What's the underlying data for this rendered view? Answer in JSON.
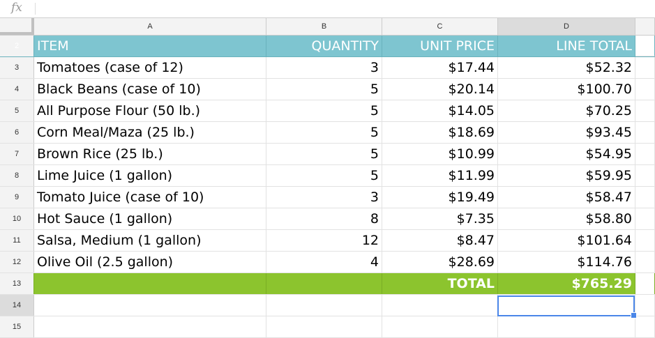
{
  "formula_bar": {
    "icon": "fx-icon",
    "label": "fx"
  },
  "columns": [
    "A",
    "B",
    "C",
    "D"
  ],
  "header_row": {
    "num": "2",
    "cells": [
      "ITEM",
      "QUANTITY",
      "UNIT PRICE",
      "LINE TOTAL"
    ]
  },
  "rows": [
    {
      "num": "3",
      "cells": [
        "Tomatoes (case of 12)",
        "3",
        "$17.44",
        "$52.32"
      ]
    },
    {
      "num": "4",
      "cells": [
        "Black Beans (case of 10)",
        "5",
        "$20.14",
        "$100.70"
      ]
    },
    {
      "num": "5",
      "cells": [
        "All Purpose Flour (50 lb.)",
        "5",
        "$14.05",
        "$70.25"
      ]
    },
    {
      "num": "6",
      "cells": [
        "Corn Meal/Maza (25 lb.)",
        "5",
        "$18.69",
        "$93.45"
      ]
    },
    {
      "num": "7",
      "cells": [
        "Brown Rice (25 lb.)",
        "5",
        "$10.99",
        "$54.95"
      ]
    },
    {
      "num": "8",
      "cells": [
        "Lime Juice (1 gallon)",
        "5",
        "$11.99",
        "$59.95"
      ]
    },
    {
      "num": "9",
      "cells": [
        "Tomato Juice (case of 10)",
        "3",
        "$19.49",
        "$58.47"
      ]
    },
    {
      "num": "10",
      "cells": [
        "Hot Sauce (1 gallon)",
        "8",
        "$7.35",
        "$58.80"
      ]
    },
    {
      "num": "11",
      "cells": [
        "Salsa, Medium (1 gallon)",
        "12",
        "$8.47",
        "$101.64"
      ]
    },
    {
      "num": "12",
      "cells": [
        "Olive Oil (2.5 gallon)",
        "4",
        "$28.69",
        "$114.76"
      ]
    }
  ],
  "total_row": {
    "num": "13",
    "label": "TOTAL",
    "value": "$765.29"
  },
  "empty_rows": [
    "14",
    "15"
  ],
  "colors": {
    "header_bg": "#7ec5d0",
    "total_bg": "#8cc42e",
    "selection": "#4a86e8"
  },
  "selected_cell": "D14"
}
